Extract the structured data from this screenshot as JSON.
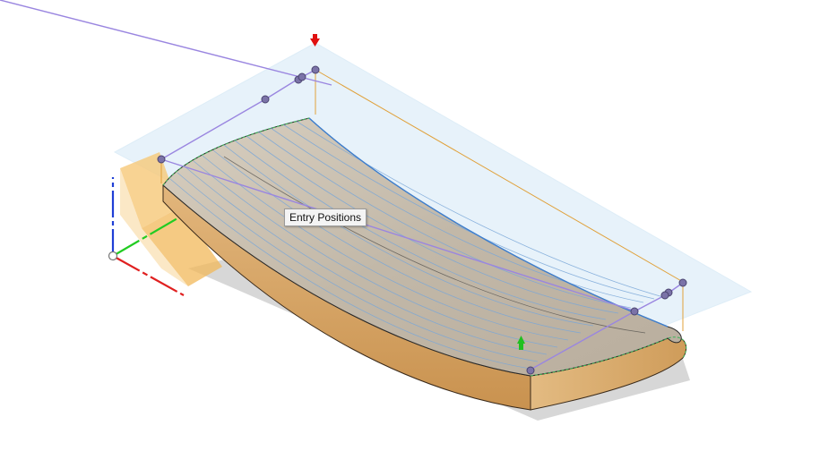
{
  "viewport": {
    "tooltip": {
      "label": "Entry Positions"
    }
  },
  "colors": {
    "background": "#ffffff",
    "wood_top": "#c9b79c",
    "wood_side": "#d9a86a",
    "toolpath": "#7aa7d8",
    "boundary": "#9a86e0",
    "stock_box": "#e0a13a",
    "plane": "#d8ebf7",
    "axis_x": "#e02020",
    "axis_y": "#22cc22",
    "axis_z": "#1f3fd6",
    "marker_start": "#e01010",
    "marker_end": "#20c020"
  },
  "icons": [
    "view-cube-icon",
    "axis-triad-icon",
    "start-arrow-icon",
    "end-arrow-icon"
  ]
}
